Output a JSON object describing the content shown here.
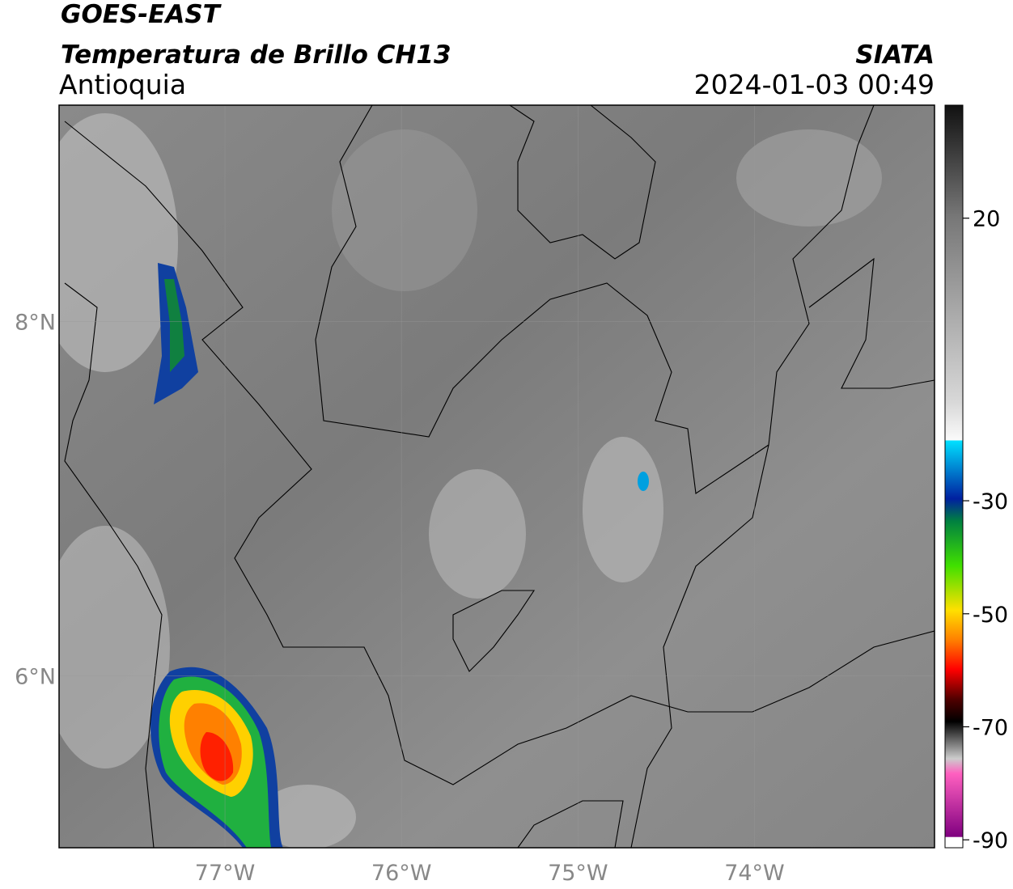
{
  "header": {
    "title": "GOES-EAST",
    "subtitle": "Temperatura de Brillo CH13",
    "region": "Antioquia",
    "source": "SIATA",
    "datetime": "2024-01-03 00:49"
  },
  "map": {
    "xlim": [
      -77.94,
      -72.98
    ],
    "ylim": [
      5.03,
      9.22
    ],
    "xticks": [
      {
        "value": -77,
        "label": "77°W"
      },
      {
        "value": -76,
        "label": "76°W"
      },
      {
        "value": -75,
        "label": "75°W"
      },
      {
        "value": -74,
        "label": "74°W"
      }
    ],
    "yticks": [
      {
        "value": 8,
        "label": "8°N"
      },
      {
        "value": 6,
        "label": "6°N"
      }
    ]
  },
  "colorbar": {
    "lim": [
      -91.4,
      40
    ],
    "ticks": [
      20,
      -30,
      -50,
      -70,
      -90
    ]
  }
}
